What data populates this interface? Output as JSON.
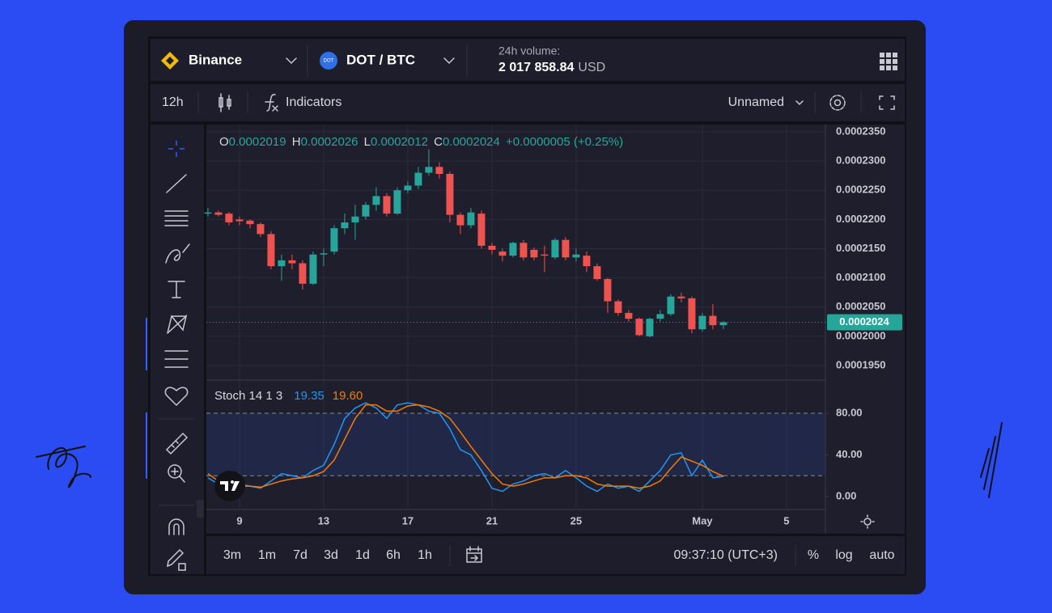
{
  "toolbar": {
    "exchange": "Binance",
    "pair_icon": "DOT",
    "pair": "DOT / BTC",
    "volume_label": "24h volume:",
    "volume": "2 017 858.84",
    "volume_unit": "USD"
  },
  "chart_toolbar": {
    "interval": "12h",
    "indicators": "Indicators",
    "layout": "Unnamed"
  },
  "chart_data": [
    {
      "type": "candlestick",
      "ohlc_letters": [
        "O",
        "H",
        "L",
        "C"
      ],
      "change": "+0.0000005 (+0.25%)",
      "up_color": "#26a69a",
      "down_color": "#ef5350",
      "x": [
        0,
        1,
        2,
        3,
        4,
        5,
        6,
        7,
        8,
        9,
        10,
        11,
        12,
        13,
        14,
        15,
        16,
        17,
        18,
        19,
        20,
        21,
        22,
        23,
        24,
        25,
        26,
        27,
        28,
        29,
        30,
        31,
        32,
        33,
        34,
        35,
        36,
        37,
        38,
        39,
        40,
        41,
        42,
        43,
        44,
        45,
        46,
        47,
        48,
        49
      ],
      "open": [
        0.000221,
        0.0002212,
        0.000221,
        0.00022,
        0.0002198,
        0.0002192,
        0.0002175,
        0.000212,
        0.000213,
        0.0002125,
        0.000209,
        0.000214,
        0.0002145,
        0.0002185,
        0.0002195,
        0.0002205,
        0.0002225,
        0.000224,
        0.000221,
        0.000225,
        0.0002258,
        0.000228,
        0.000229,
        0.0002278,
        0.0002208,
        0.000219,
        0.000221,
        0.0002155,
        0.0002145,
        0.0002138,
        0.000216,
        0.0002148,
        0.000214,
        0.0002135,
        0.0002165,
        0.0002135,
        0.0002138,
        0.000212,
        0.0002098,
        0.000206,
        0.000204,
        0.000203,
        0.0002,
        0.000203,
        0.0002038,
        0.0002068,
        0.0002065,
        0.0002012,
        0.0002035,
        0.0002019
      ],
      "high": [
        0.000222,
        0.0002215,
        0.0002213,
        0.0002205,
        0.00022,
        0.0002195,
        0.000218,
        0.000214,
        0.000214,
        0.000213,
        0.0002145,
        0.000215,
        0.000219,
        0.000221,
        0.0002225,
        0.000223,
        0.0002255,
        0.0002245,
        0.0002255,
        0.0002265,
        0.000229,
        0.000232,
        0.0002298,
        0.0002282,
        0.0002212,
        0.000222,
        0.0002215,
        0.000216,
        0.000215,
        0.0002162,
        0.0002165,
        0.0002152,
        0.0002155,
        0.0002168,
        0.000217,
        0.000215,
        0.0002145,
        0.0002125,
        0.00021,
        0.0002063,
        0.0002045,
        0.0002032,
        0.0002032,
        0.0002045,
        0.0002072,
        0.0002075,
        0.0002068,
        0.000204,
        0.0002055,
        0.0002026
      ],
      "low": [
        0.0002205,
        0.0002205,
        0.000219,
        0.000219,
        0.0002185,
        0.000217,
        0.0002115,
        0.0002095,
        0.0002115,
        0.000208,
        0.0002088,
        0.000212,
        0.000214,
        0.0002175,
        0.0002165,
        0.00022,
        0.0002215,
        0.0002205,
        0.0002208,
        0.0002245,
        0.0002252,
        0.0002275,
        0.000227,
        0.0002195,
        0.0002175,
        0.0002185,
        0.000215,
        0.000214,
        0.0002128,
        0.0002135,
        0.000213,
        0.000213,
        0.000211,
        0.0002132,
        0.000213,
        0.0002128,
        0.000211,
        0.0002095,
        0.000204,
        0.0002035,
        0.0002025,
        0.0002,
        0.0001998,
        0.0002025,
        0.0002035,
        0.0002058,
        0.0002005,
        0.0002008,
        0.0002012,
        0.0002012
      ],
      "close": [
        0.0002212,
        0.0002208,
        0.0002195,
        0.0002197,
        0.0002192,
        0.0002175,
        0.000212,
        0.000213,
        0.0002125,
        0.000209,
        0.000214,
        0.0002142,
        0.0002185,
        0.0002195,
        0.0002205,
        0.0002225,
        0.000224,
        0.000221,
        0.000225,
        0.0002258,
        0.000228,
        0.000229,
        0.0002278,
        0.0002208,
        0.000219,
        0.0002212,
        0.0002155,
        0.0002148,
        0.0002138,
        0.000216,
        0.0002135,
        0.0002135,
        0.0002138,
        0.0002165,
        0.0002135,
        0.000214,
        0.000212,
        0.0002098,
        0.000206,
        0.000204,
        0.000203,
        0.0002002,
        0.000203,
        0.0002038,
        0.0002068,
        0.0002065,
        0.0002012,
        0.0002035,
        0.0002019,
        0.0002024
      ],
      "xlim": [
        -0.15,
        58.7
      ],
      "xticks": [
        {
          "value": 3,
          "label": "9"
        },
        {
          "value": 11,
          "label": "13"
        },
        {
          "value": 19,
          "label": "17"
        },
        {
          "value": 27,
          "label": "21"
        },
        {
          "value": 35,
          "label": "25"
        },
        {
          "value": 47,
          "label": "May"
        },
        {
          "value": 55,
          "label": "5"
        }
      ],
      "ylim": [
        0.0001925,
        0.00023625
      ],
      "yticks": [
        {
          "value": 0.000235,
          "label": "0.0002350"
        },
        {
          "value": 0.00023,
          "label": "0.0002300"
        },
        {
          "value": 0.000225,
          "label": "0.0002250"
        },
        {
          "value": 0.00022,
          "label": "0.0002200"
        },
        {
          "value": 0.000215,
          "label": "0.0002150"
        },
        {
          "value": 0.00021,
          "label": "0.0002100"
        },
        {
          "value": 0.000205,
          "label": "0.0002050"
        },
        {
          "value": 0.0002,
          "label": "0.0002000"
        },
        {
          "value": 0.000195,
          "label": "0.0001950"
        }
      ],
      "grid": true
    },
    {
      "type": "line",
      "title": "Stoch 14 1 3",
      "x": [
        0,
        1,
        2,
        3,
        4,
        5,
        6,
        7,
        8,
        9,
        10,
        11,
        12,
        13,
        14,
        15,
        16,
        17,
        18,
        19,
        20,
        21,
        22,
        23,
        24,
        25,
        26,
        27,
        28,
        29,
        30,
        31,
        32,
        33,
        34,
        35,
        36,
        37,
        38,
        39,
        40,
        41,
        42,
        43,
        44,
        45,
        46,
        47,
        48,
        49
      ],
      "series": [
        {
          "color": "#2196f3",
          "value_label": "19.35",
          "values": [
            18,
            12,
            8,
            12,
            10,
            8,
            15,
            22,
            20,
            18,
            25,
            30,
            50,
            75,
            85,
            90,
            85,
            75,
            88,
            90,
            88,
            82,
            80,
            65,
            45,
            40,
            25,
            8,
            5,
            12,
            15,
            20,
            22,
            18,
            25,
            18,
            10,
            5,
            12,
            8,
            10,
            5,
            15,
            25,
            40,
            42,
            20,
            35,
            18,
            19.35
          ]
        },
        {
          "color": "#f57c00",
          "value_label": "19.60",
          "values": [
            22,
            15,
            10,
            10,
            10,
            9,
            12,
            15,
            17,
            18,
            20,
            24,
            35,
            55,
            75,
            88,
            88,
            82,
            82,
            87,
            88,
            86,
            82,
            75,
            62,
            48,
            35,
            22,
            12,
            10,
            12,
            15,
            18,
            18,
            20,
            20,
            18,
            12,
            10,
            10,
            10,
            8,
            10,
            15,
            27,
            38,
            34,
            30,
            24,
            19.6
          ]
        }
      ],
      "band": [
        20,
        80
      ],
      "ylim": [
        -12.4,
        111.8
      ],
      "yticks": [
        {
          "value": 80,
          "label": "80.00"
        },
        {
          "value": 40,
          "label": "40.00"
        },
        {
          "value": 0,
          "label": "0.00"
        }
      ]
    }
  ],
  "bottom_bar": {
    "ranges": [
      "3m",
      "1m",
      "7d",
      "3d",
      "1d",
      "6h",
      "1h"
    ],
    "time": "09:37:10 (UTC+3)",
    "options": [
      "%",
      "log",
      "auto"
    ]
  }
}
